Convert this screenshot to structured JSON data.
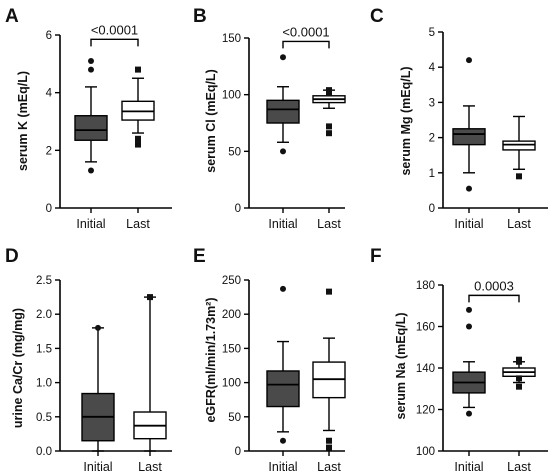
{
  "chart_data": [
    {
      "panel": "A",
      "type": "box",
      "ylabel": "serum K (mEq/L)",
      "ylim": [
        0,
        6
      ],
      "yticks": [
        0,
        2,
        4,
        6
      ],
      "ytick_labels": [
        "0",
        "2",
        "4",
        "6"
      ],
      "categories": [
        "Initial",
        "Last"
      ],
      "series": [
        {
          "category": "Initial",
          "fill": "#4a4a4a",
          "whisker_low": 1.6,
          "q1": 2.35,
          "median": 2.7,
          "q3": 3.2,
          "whisker_high": 4.2,
          "outliers": [
            1.3,
            4.8,
            5.1
          ],
          "outlier_marker": "circle"
        },
        {
          "category": "Last",
          "fill": "#ffffff",
          "whisker_low": 2.6,
          "q1": 3.05,
          "median": 3.35,
          "q3": 3.7,
          "whisker_high": 4.5,
          "outliers": [
            2.2,
            2.4,
            4.8
          ],
          "outlier_marker": "square"
        }
      ],
      "annotation": {
        "text": "<0.0001",
        "y": 5.85
      }
    },
    {
      "panel": "B",
      "type": "box",
      "ylabel": "serum Cl (mEq/L)",
      "ylim": [
        0,
        150
      ],
      "yticks": [
        0,
        50,
        100,
        150
      ],
      "ytick_labels": [
        "0",
        "50",
        "100",
        "150"
      ],
      "categories": [
        "Initial",
        "Last"
      ],
      "series": [
        {
          "category": "Initial",
          "fill": "#4a4a4a",
          "whisker_low": 58,
          "q1": 75,
          "median": 87,
          "q3": 95,
          "whisker_high": 107,
          "outliers": [
            50,
            133
          ],
          "outlier_marker": "circle"
        },
        {
          "category": "Last",
          "fill": "#ffffff",
          "whisker_low": 88,
          "q1": 93,
          "median": 96,
          "q3": 99,
          "whisker_high": 104,
          "outliers": [
            66,
            72,
            101,
            103,
            104
          ],
          "outlier_marker": "square"
        }
      ],
      "annotation": {
        "text": "<0.0001",
        "y": 147
      }
    },
    {
      "panel": "C",
      "type": "box",
      "ylabel": "serum Mg (mEq/L)",
      "ylim": [
        0,
        5
      ],
      "yticks": [
        0,
        1,
        2,
        3,
        4,
        5
      ],
      "ytick_labels": [
        "0",
        "1",
        "2",
        "3",
        "4",
        "5"
      ],
      "categories": [
        "Initial",
        "Last"
      ],
      "series": [
        {
          "category": "Initial",
          "fill": "#4a4a4a",
          "whisker_low": 1.0,
          "q1": 1.8,
          "median": 2.1,
          "q3": 2.25,
          "whisker_high": 2.9,
          "outliers": [
            0.55,
            4.2
          ],
          "outlier_marker": "circle"
        },
        {
          "category": "Last",
          "fill": "#ffffff",
          "whisker_low": 1.1,
          "q1": 1.65,
          "median": 1.8,
          "q3": 1.9,
          "whisker_high": 2.6,
          "outliers": [
            0.9
          ],
          "outlier_marker": "square"
        }
      ]
    },
    {
      "panel": "D",
      "type": "box",
      "ylabel": "urine  Ca/Cr (mg/mg)",
      "ylim": [
        0,
        2.5
      ],
      "yticks": [
        0,
        0.5,
        1,
        1.5,
        2,
        2.5
      ],
      "ytick_labels": [
        "0.0",
        "0.5",
        "1.0",
        "1.5",
        "2.0",
        "2.5"
      ],
      "categories": [
        "Initial",
        "Last"
      ],
      "series": [
        {
          "category": "Initial",
          "fill": "#4a4a4a",
          "whisker_low": 0.0,
          "q1": 0.15,
          "median": 0.5,
          "q3": 0.84,
          "whisker_high": 1.8,
          "outliers": [
            1.8
          ],
          "outlier_marker": "circle"
        },
        {
          "category": "Last",
          "fill": "#ffffff",
          "whisker_low": 0.0,
          "q1": 0.18,
          "median": 0.37,
          "q3": 0.57,
          "whisker_high": 2.25,
          "outliers": [
            2.25
          ],
          "outlier_marker": "square"
        }
      ]
    },
    {
      "panel": "E",
      "type": "box",
      "ylabel": "eGFR(ml/min/1.73m²)",
      "ylim": [
        0,
        250
      ],
      "yticks": [
        0,
        50,
        100,
        150,
        200,
        250
      ],
      "ytick_labels": [
        "0",
        "50",
        "100",
        "150",
        "200",
        "250"
      ],
      "categories": [
        "Initial",
        "Last"
      ],
      "series": [
        {
          "category": "Initial",
          "fill": "#4a4a4a",
          "whisker_low": 28,
          "q1": 65,
          "median": 97,
          "q3": 117,
          "whisker_high": 160,
          "outliers": [
            15,
            237
          ],
          "outlier_marker": "circle"
        },
        {
          "category": "Last",
          "fill": "#ffffff",
          "whisker_low": 30,
          "q1": 78,
          "median": 105,
          "q3": 130,
          "whisker_high": 165,
          "outliers": [
            5,
            15,
            233
          ],
          "outlier_marker": "square"
        }
      ]
    },
    {
      "panel": "F",
      "type": "box",
      "ylabel": "serum Na (mEq/L)",
      "ylim": [
        100,
        180
      ],
      "yticks": [
        100,
        120,
        140,
        160,
        180
      ],
      "ytick_labels": [
        "100",
        "120",
        "140",
        "160",
        "180"
      ],
      "categories": [
        "Initial",
        "Last"
      ],
      "series": [
        {
          "category": "Initial",
          "fill": "#4a4a4a",
          "whisker_low": 121,
          "q1": 128,
          "median": 133,
          "q3": 138,
          "whisker_high": 143,
          "outliers": [
            118,
            160,
            168
          ],
          "outlier_marker": "circle"
        },
        {
          "category": "Last",
          "fill": "#ffffff",
          "whisker_low": 133,
          "q1": 136,
          "median": 138,
          "q3": 140,
          "whisker_high": 143,
          "outliers": [
            131,
            135,
            143,
            144
          ],
          "outlier_marker": "square"
        }
      ],
      "annotation": {
        "text": "0.0003",
        "y": 175
      }
    }
  ]
}
